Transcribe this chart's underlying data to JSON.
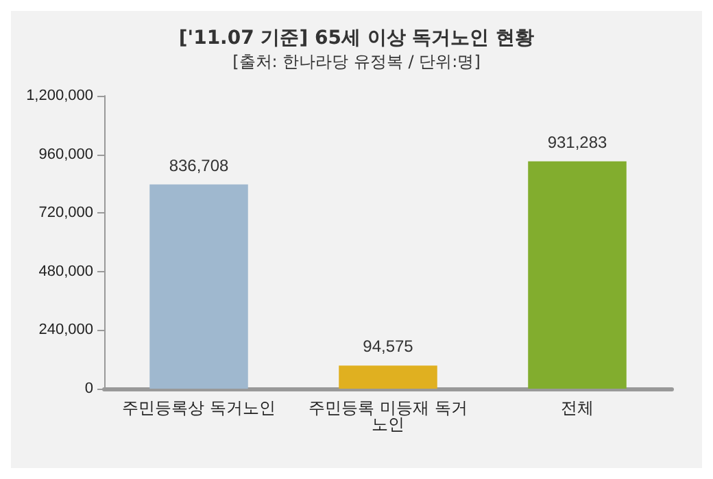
{
  "chart_data": {
    "type": "bar",
    "title": "['11.07 기준] 65세 이상 독거노인 현황",
    "subtitle": "[출처: 한나라당 유정복 / 단위:명]",
    "categories": [
      "주민등록상 독거노인",
      "주민등록 미등재 독거노인",
      "전체"
    ],
    "values": [
      836708,
      94575,
      931283
    ],
    "colors": [
      "#9fb8cf",
      "#e0b020",
      "#82ad2e"
    ],
    "value_labels": [
      "836,708",
      "94,575",
      "931,283"
    ],
    "ylim": [
      0,
      1200000
    ],
    "yticks": [
      0,
      {
        "value": 240000,
        "label": "240,000"
      },
      {
        "value": 480000,
        "label": "480,000"
      },
      {
        "value": 720000,
        "label": "720,000"
      },
      {
        "value": 960000,
        "label": "960,000"
      },
      {
        "value": 1200000,
        "label": "1,200,000"
      }
    ],
    "grid": false
  }
}
